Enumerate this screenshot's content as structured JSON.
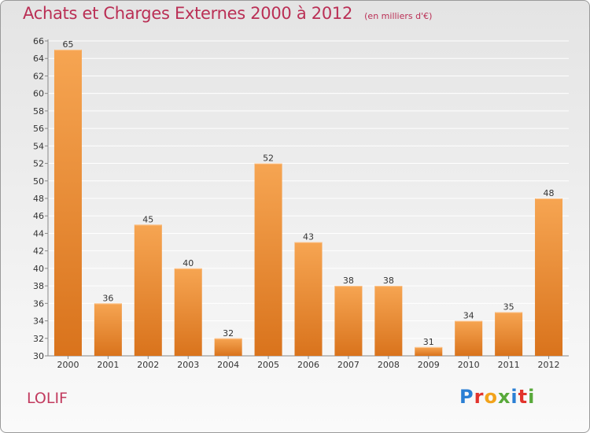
{
  "header": {
    "title": "Achats et Charges Externes 2000 à 2012",
    "subtitle": "(en milliers d'€)"
  },
  "footer": {
    "commune": "LOLIF",
    "brand_letters": [
      "P",
      "r",
      "o",
      "x",
      "i",
      "t",
      "i"
    ],
    "brand_colors": [
      "#2a7fd4",
      "#e2332c",
      "#f2a31b",
      "#58a93a",
      "#2a7fd4",
      "#e2332c",
      "#58a93a"
    ]
  },
  "colors": {
    "bar_top": "#f6a552",
    "bar_bottom": "#d9731c",
    "grid": "#ffffff",
    "axis_text": "#333333",
    "title": "#ba2f55"
  },
  "chart_data": {
    "type": "bar",
    "title": "Achats et Charges Externes 2000 à 2012",
    "subtitle": "(en milliers d'€)",
    "categories": [
      "2000",
      "2001",
      "2002",
      "2003",
      "2004",
      "2005",
      "2006",
      "2007",
      "2008",
      "2009",
      "2010",
      "2011",
      "2012"
    ],
    "values": [
      65,
      36,
      45,
      40,
      32,
      52,
      43,
      38,
      38,
      31,
      34,
      35,
      48
    ],
    "ylim": [
      30,
      66
    ],
    "yticks": [
      30,
      32,
      34,
      36,
      38,
      40,
      42,
      44,
      46,
      48,
      50,
      52,
      54,
      56,
      58,
      60,
      62,
      64,
      66
    ],
    "grid": true,
    "legend": "none"
  }
}
